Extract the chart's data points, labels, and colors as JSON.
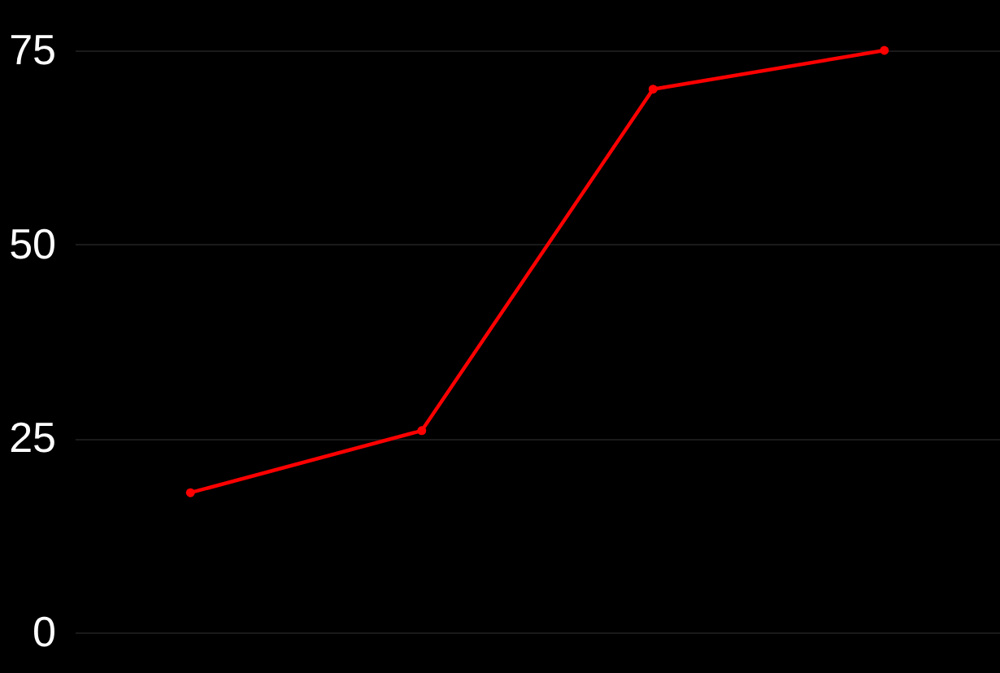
{
  "chart_data": {
    "type": "line",
    "categories": [
      null,
      null,
      null,
      null
    ],
    "series": [
      {
        "color": "#ff0000",
        "values": [
          18,
          26,
          70,
          75
        ]
      }
    ],
    "ylim": [
      0,
      75
    ],
    "yticks": [
      0,
      25,
      50,
      75
    ],
    "grid": "y",
    "marker": "circle",
    "line_style": "solid",
    "tick_labels": "y"
  }
}
